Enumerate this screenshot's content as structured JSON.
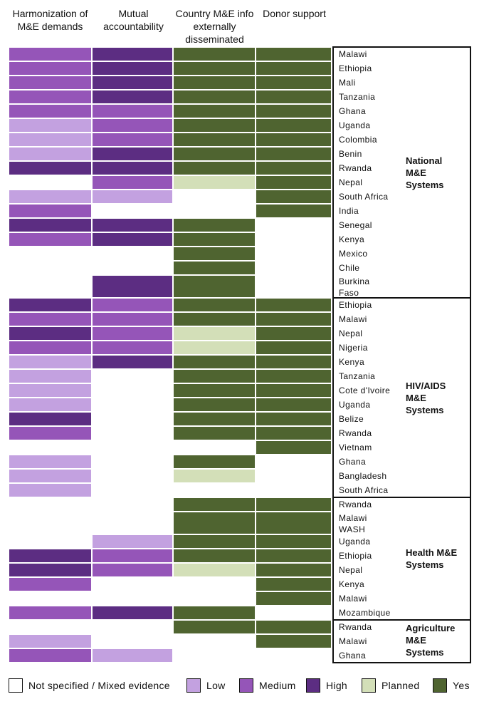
{
  "chart_data": {
    "type": "heatmap",
    "columns": [
      {
        "key": "harmonization",
        "label": "Harmonization of M&E demands"
      },
      {
        "key": "accountability",
        "label": "Mutual accountability"
      },
      {
        "key": "dissemination",
        "label": "Country M&E info externally disseminated"
      },
      {
        "key": "donor",
        "label": "Donor support"
      }
    ],
    "colors": {
      "none": "#ffffff",
      "low": "#c3a1e0",
      "medium": "#9555b8",
      "high": "#5c2d82",
      "planned": "#d3dfb8",
      "yes": "#4f6430"
    },
    "legend": [
      {
        "key": "none",
        "label": "Not specified / Mixed evidence"
      },
      {
        "key": "low",
        "label": "Low"
      },
      {
        "key": "medium",
        "label": "Medium"
      },
      {
        "key": "high",
        "label": "High"
      },
      {
        "key": "planned",
        "label": "Planned"
      },
      {
        "key": "yes",
        "label": "Yes"
      }
    ],
    "groups": [
      {
        "name": "National M&E Systems",
        "rows": [
          {
            "country": "Malawi",
            "values": [
              "medium",
              "high",
              "yes",
              "yes"
            ]
          },
          {
            "country": "Ethiopia",
            "values": [
              "medium",
              "high",
              "yes",
              "yes"
            ]
          },
          {
            "country": "Mali",
            "values": [
              "medium",
              "high",
              "yes",
              "yes"
            ]
          },
          {
            "country": "Tanzania",
            "values": [
              "medium",
              "high",
              "yes",
              "yes"
            ]
          },
          {
            "country": "Ghana",
            "values": [
              "medium",
              "medium",
              "yes",
              "yes"
            ]
          },
          {
            "country": "Uganda",
            "values": [
              "low",
              "medium",
              "yes",
              "yes"
            ]
          },
          {
            "country": "Colombia",
            "values": [
              "low",
              "medium",
              "yes",
              "yes"
            ]
          },
          {
            "country": "Benin",
            "values": [
              "low",
              "high",
              "yes",
              "yes"
            ]
          },
          {
            "country": "Rwanda",
            "values": [
              "high",
              "high",
              "yes",
              "yes"
            ]
          },
          {
            "country": "Nepal",
            "values": [
              "none",
              "medium",
              "planned",
              "yes"
            ]
          },
          {
            "country": "South Africa",
            "values": [
              "low",
              "low",
              "none",
              "yes"
            ]
          },
          {
            "country": "India",
            "values": [
              "medium",
              "none",
              "none",
              "yes"
            ]
          },
          {
            "country": "Senegal",
            "values": [
              "high",
              "high",
              "yes",
              "none"
            ]
          },
          {
            "country": "Kenya",
            "values": [
              "medium",
              "high",
              "yes",
              "none"
            ]
          },
          {
            "country": "Mexico",
            "values": [
              "none",
              "none",
              "yes",
              "none"
            ]
          },
          {
            "country": "Chile",
            "values": [
              "none",
              "none",
              "yes",
              "none"
            ]
          },
          {
            "country": "Burkina Faso",
            "lines": [
              "Burkina",
              "Faso"
            ],
            "tall": true,
            "values": [
              "none",
              "high",
              "yes",
              "none"
            ]
          }
        ]
      },
      {
        "name": "HIV/AIDS M&E Systems",
        "rows": [
          {
            "country": "Ethiopia",
            "values": [
              "high",
              "medium",
              "yes",
              "yes"
            ]
          },
          {
            "country": "Malawi",
            "values": [
              "medium",
              "medium",
              "yes",
              "yes"
            ]
          },
          {
            "country": "Nepal",
            "values": [
              "high",
              "medium",
              "planned",
              "yes"
            ]
          },
          {
            "country": "Nigeria",
            "values": [
              "medium",
              "medium",
              "planned",
              "yes"
            ]
          },
          {
            "country": "Kenya",
            "values": [
              "low",
              "high",
              "yes",
              "yes"
            ]
          },
          {
            "country": "Tanzania",
            "values": [
              "low",
              "none",
              "yes",
              "yes"
            ]
          },
          {
            "country": "Cote d'Ivoire",
            "values": [
              "low",
              "none",
              "yes",
              "yes"
            ]
          },
          {
            "country": "Uganda",
            "values": [
              "low",
              "none",
              "yes",
              "yes"
            ]
          },
          {
            "country": "Belize",
            "values": [
              "high",
              "none",
              "yes",
              "yes"
            ]
          },
          {
            "country": "Rwanda",
            "values": [
              "medium",
              "none",
              "yes",
              "yes"
            ]
          },
          {
            "country": "Vietnam",
            "values": [
              "none",
              "none",
              "none",
              "yes"
            ]
          },
          {
            "country": "Ghana",
            "values": [
              "low",
              "none",
              "yes",
              "none"
            ]
          },
          {
            "country": "Bangladesh",
            "values": [
              "low",
              "none",
              "planned",
              "none"
            ]
          },
          {
            "country": "South Africa",
            "values": [
              "low",
              "none",
              "none",
              "none"
            ]
          }
        ]
      },
      {
        "name": "Health M&E Systems",
        "rows": [
          {
            "country": "Rwanda",
            "values": [
              "none",
              "none",
              "yes",
              "yes"
            ]
          },
          {
            "country": "Malawi WASH",
            "lines": [
              "Malawi",
              "WASH"
            ],
            "tall": true,
            "values": [
              "none",
              "none",
              "yes",
              "yes"
            ]
          },
          {
            "country": "Uganda",
            "values": [
              "none",
              "low",
              "yes",
              "yes"
            ]
          },
          {
            "country": "Ethiopia",
            "values": [
              "high",
              "medium",
              "yes",
              "yes"
            ]
          },
          {
            "country": "Nepal",
            "values": [
              "high",
              "medium",
              "planned",
              "yes"
            ]
          },
          {
            "country": "Kenya",
            "values": [
              "medium",
              "none",
              "none",
              "yes"
            ]
          },
          {
            "country": "Malawi",
            "values": [
              "none",
              "none",
              "none",
              "yes"
            ]
          },
          {
            "country": "Mozambique",
            "values": [
              "medium",
              "high",
              "yes",
              "none"
            ]
          }
        ]
      },
      {
        "name": "Agriculture M&E Systems",
        "rows": [
          {
            "country": "Rwanda",
            "values": [
              "none",
              "none",
              "yes",
              "yes"
            ]
          },
          {
            "country": "Malawi",
            "values": [
              "low",
              "none",
              "none",
              "yes"
            ]
          },
          {
            "country": "Ghana",
            "values": [
              "medium",
              "low",
              "none",
              "none"
            ]
          }
        ]
      }
    ]
  }
}
